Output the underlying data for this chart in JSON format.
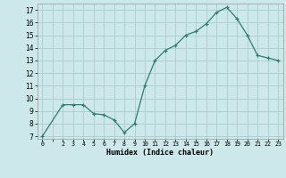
{
  "x": [
    0,
    2,
    3,
    4,
    5,
    6,
    7,
    8,
    9,
    10,
    11,
    12,
    13,
    14,
    15,
    16,
    17,
    18,
    19,
    20,
    21,
    22,
    23
  ],
  "y": [
    7,
    9.5,
    9.5,
    9.5,
    8.8,
    8.7,
    8.3,
    7.3,
    8.0,
    11.0,
    13.0,
    13.8,
    14.2,
    15.0,
    15.3,
    15.9,
    16.8,
    17.2,
    16.3,
    15.0,
    13.4,
    13.2,
    13.0
  ],
  "line_color": "#2e7d6e",
  "marker": "+",
  "bg_color": "#cce8ea",
  "grid_color": "#aacccc",
  "xlabel": "Humidex (Indice chaleur)",
  "ylabel_ticks": [
    7,
    8,
    9,
    10,
    11,
    12,
    13,
    14,
    15,
    16,
    17
  ],
  "ylim": [
    6.8,
    17.5
  ],
  "xlim": [
    -0.5,
    23.5
  ]
}
